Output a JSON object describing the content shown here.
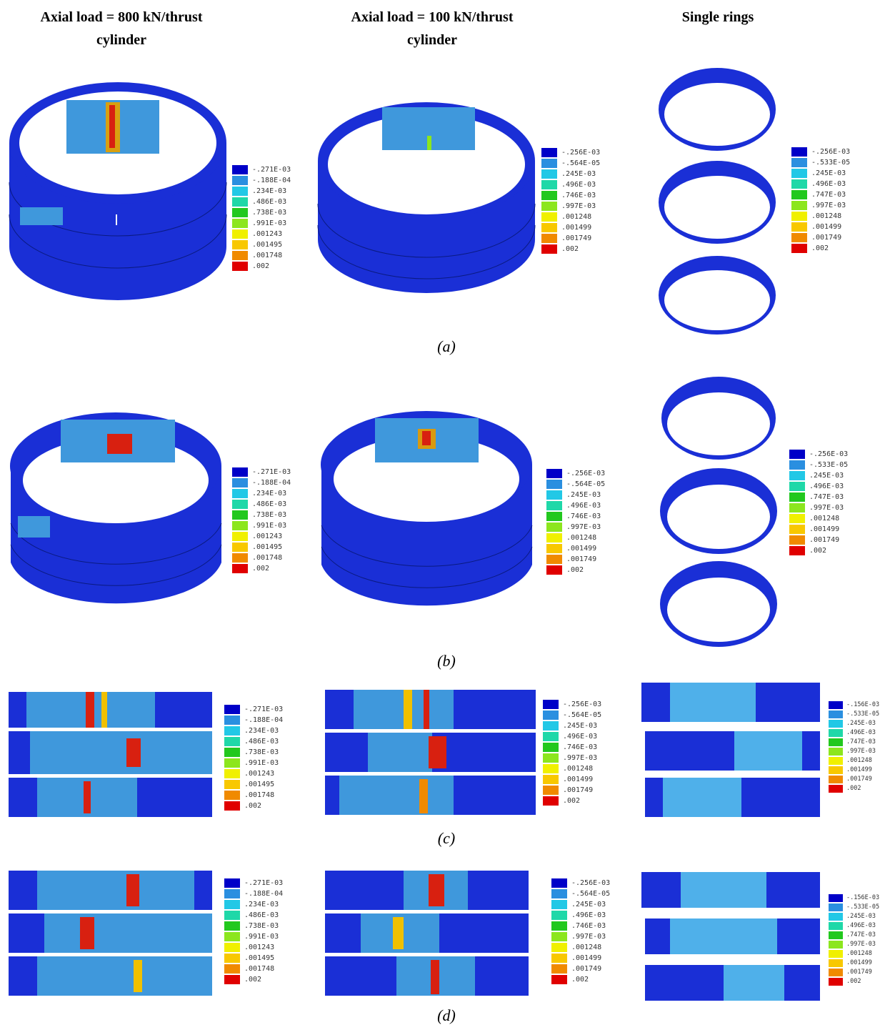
{
  "headers": {
    "col1": "Axial load = 800 kN/thrust cylinder",
    "col2": "Axial load = 100 kN/thrust cylinder",
    "col3": "Single rings"
  },
  "captions": {
    "a": "(a)",
    "b": "(b)",
    "c": "(c)",
    "d": "(d)"
  },
  "legends": {
    "load800": [
      "-.271E-03",
      "-.188E-04",
      ".234E-03",
      ".486E-03",
      ".738E-03",
      ".991E-03",
      ".001243",
      ".001495",
      ".001748",
      ".002"
    ],
    "load100": [
      "-.256E-03",
      "-.564E-05",
      ".245E-03",
      ".496E-03",
      ".746E-03",
      ".997E-03",
      ".001248",
      ".001499",
      ".001749",
      ".002"
    ],
    "single": [
      "-.256E-03",
      "-.533E-05",
      ".245E-03",
      ".496E-03",
      ".747E-03",
      ".997E-03",
      ".001248",
      ".001499",
      ".001749",
      ".002"
    ],
    "single_flat": [
      "-.156E-03",
      "-.533E-05",
      ".245E-03",
      ".496E-03",
      ".747E-03",
      ".997E-03",
      ".001248",
      ".001499",
      ".001749",
      ".002"
    ]
  },
  "legend_colors": [
    "#0000c8",
    "#2a8fe0",
    "#22c8e6",
    "#1fd8a8",
    "#22c81e",
    "#8ce61e",
    "#f0f000",
    "#f8c800",
    "#f08a00",
    "#e00000"
  ]
}
